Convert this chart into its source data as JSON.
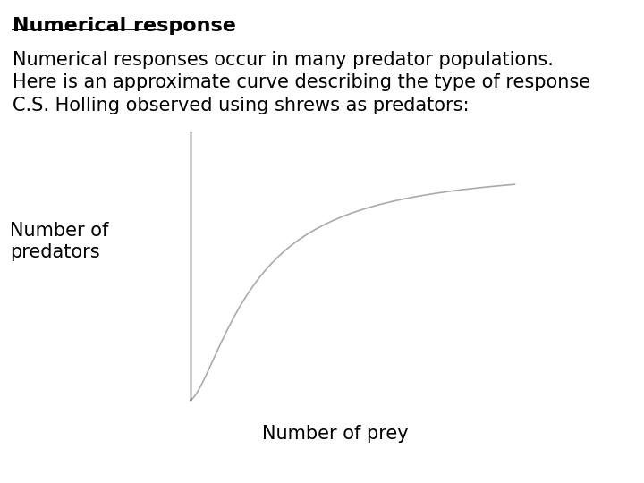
{
  "title_bold": "Numerical response",
  "text_line1": "Numerical responses occur in many predator populations.",
  "text_line2": "Here is an approximate curve describing the type of response",
  "text_line3": "C.S. Holling observed using shrews as predators:",
  "ylabel": "Number of\npredators",
  "xlabel": "Number of prey",
  "background_color": "#ffffff",
  "curve_color": "#aaaaaa",
  "text_color": "#000000",
  "title_fontsize": 16,
  "body_fontsize": 15,
  "axis_label_fontsize": 15
}
